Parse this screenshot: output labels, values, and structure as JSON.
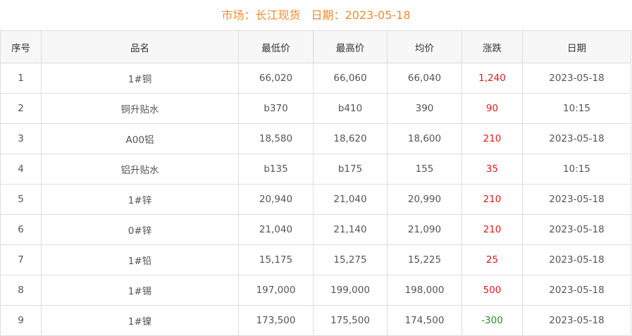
{
  "header": {
    "market": "市场：长江现货",
    "date": "日期：2023-05-18"
  },
  "colors": {
    "up": "#e0181e",
    "down": "#2a8a2a",
    "title": "#f08c2e"
  },
  "columns": [
    "序号",
    "品名",
    "最低价",
    "最高价",
    "均价",
    "涨跌",
    "日期"
  ],
  "rows": [
    [
      "1",
      "1#铜",
      "66,020",
      "66,060",
      "66,040",
      "1,240",
      "2023-05-18"
    ],
    [
      "2",
      "铜升贴水",
      "b370",
      "b410",
      "390",
      "90",
      "10:15"
    ],
    [
      "3",
      "A00铝",
      "18,580",
      "18,620",
      "18,600",
      "210",
      "2023-05-18"
    ],
    [
      "4",
      "铝升贴水",
      "b135",
      "b175",
      "155",
      "35",
      "10:15"
    ],
    [
      "5",
      "1#锌",
      "20,940",
      "21,040",
      "20,990",
      "210",
      "2023-05-18"
    ],
    [
      "6",
      "0#锌",
      "21,040",
      "21,140",
      "21,090",
      "210",
      "2023-05-18"
    ],
    [
      "7",
      "1#铅",
      "15,175",
      "15,275",
      "15,225",
      "25",
      "2023-05-18"
    ],
    [
      "8",
      "1#锡",
      "197,000",
      "199,000",
      "198,000",
      "500",
      "2023-05-18"
    ],
    [
      "9",
      "1#镍",
      "173,500",
      "175,500",
      "174,500",
      "-300",
      "2023-05-18"
    ]
  ]
}
